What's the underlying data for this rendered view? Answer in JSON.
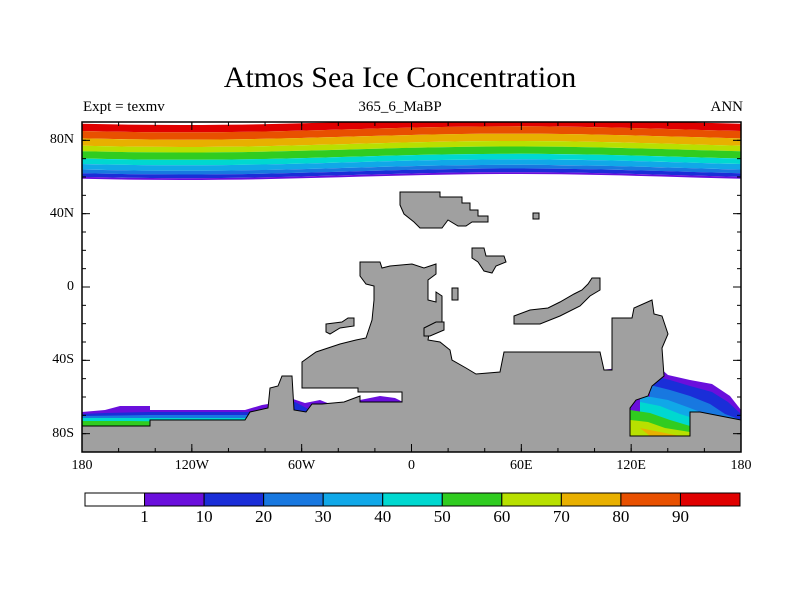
{
  "title": "Atmos Sea Ice Concentration",
  "subtitle_left": "Expt = texmv",
  "subtitle_center": "365_6_MaBP",
  "subtitle_right": "ANN",
  "y_axis": {
    "ticks": [
      {
        "lat": 80,
        "label": "80N"
      },
      {
        "lat": 40,
        "label": "40N"
      },
      {
        "lat": 0,
        "label": "0"
      },
      {
        "lat": -40,
        "label": "40S"
      },
      {
        "lat": -80,
        "label": "80S"
      }
    ]
  },
  "x_axis": {
    "ticks": [
      {
        "lon": -180,
        "label": "180"
      },
      {
        "lon": -120,
        "label": "120W"
      },
      {
        "lon": -60,
        "label": "60W"
      },
      {
        "lon": 0,
        "label": "0"
      },
      {
        "lon": 60,
        "label": "60E"
      },
      {
        "lon": 120,
        "label": "120E"
      },
      {
        "lon": 180,
        "label": "180"
      }
    ]
  },
  "colorbar": {
    "labels": [
      "1",
      "10",
      "20",
      "30",
      "40",
      "50",
      "60",
      "70",
      "80",
      "90"
    ],
    "colors": [
      "#ffffff",
      "#6a0fdc",
      "#1a2ed8",
      "#1878e0",
      "#10a8e8",
      "#00d8d0",
      "#30cc20",
      "#b8e000",
      "#e8b000",
      "#e85000",
      "#e00000"
    ]
  },
  "land_color": "#a0a0a0",
  "arctic_bands": [
    {
      "lat_top": 90,
      "lat_bottom": 86,
      "level": 10
    },
    {
      "lat_top": 86,
      "lat_bottom": 82,
      "level": 9
    },
    {
      "lat_top": 82,
      "lat_bottom": 78,
      "level": 8
    },
    {
      "lat_top": 78,
      "lat_bottom": 75,
      "level": 7
    },
    {
      "lat_top": 75,
      "lat_bottom": 71,
      "level": 6
    },
    {
      "lat_top": 71,
      "lat_bottom": 68,
      "level": 5
    },
    {
      "lat_top": 68,
      "lat_bottom": 65,
      "level": 4
    },
    {
      "lat_top": 65,
      "lat_bottom": 63,
      "level": 3
    },
    {
      "lat_top": 63,
      "lat_bottom": 61,
      "level": 2
    },
    {
      "lat_top": 61,
      "lat_bottom": 60,
      "level": 1
    }
  ]
}
